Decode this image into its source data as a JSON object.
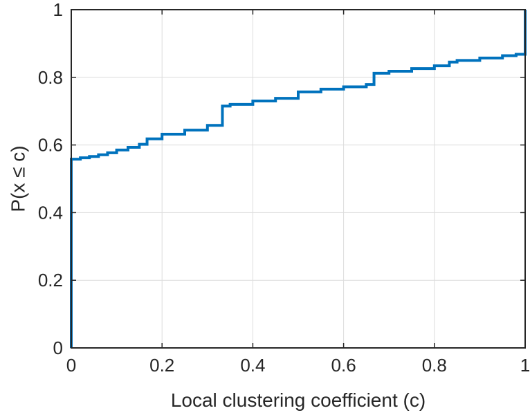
{
  "chart_data": {
    "type": "line",
    "title": "",
    "xlabel": "Local clustering coefficient (c)",
    "ylabel": "P(x ≤ c)",
    "xlim": [
      0,
      1
    ],
    "ylim": [
      0,
      1
    ],
    "grid": true,
    "x_ticks": [
      0,
      0.2,
      0.4,
      0.6,
      0.8,
      1
    ],
    "y_ticks": [
      0,
      0.2,
      0.4,
      0.6,
      0.8,
      1
    ],
    "x_tick_labels": [
      "0",
      "0.2",
      "0.4",
      "0.6",
      "0.8",
      "1"
    ],
    "y_tick_labels": [
      "0",
      "0.2",
      "0.4",
      "0.6",
      "0.8",
      "1"
    ],
    "series": [
      {
        "color": "#0072bd",
        "step": true,
        "x": [
          0,
          0,
          0.02,
          0.04,
          0.06,
          0.08,
          0.1,
          0.125,
          0.15,
          0.167,
          0.2,
          0.25,
          0.3,
          0.333,
          0.35,
          0.4,
          0.45,
          0.5,
          0.55,
          0.6,
          0.65,
          0.667,
          0.7,
          0.75,
          0.8,
          0.833,
          0.85,
          0.9,
          0.95,
          0.98,
          1.0,
          1.0
        ],
        "y": [
          0,
          0.558,
          0.562,
          0.566,
          0.571,
          0.577,
          0.585,
          0.593,
          0.602,
          0.618,
          0.632,
          0.644,
          0.658,
          0.715,
          0.72,
          0.73,
          0.738,
          0.757,
          0.765,
          0.772,
          0.779,
          0.812,
          0.818,
          0.826,
          0.834,
          0.845,
          0.85,
          0.857,
          0.864,
          0.868,
          0.868,
          1.0
        ]
      }
    ]
  }
}
